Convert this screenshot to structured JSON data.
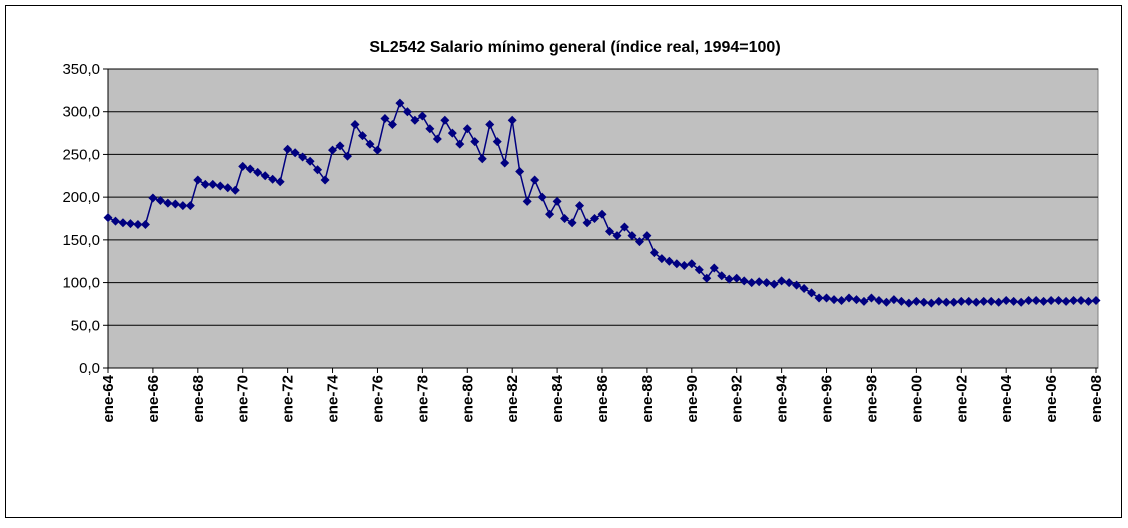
{
  "chart_data": {
    "type": "line",
    "title": "SL2542 Salario mínimo general (índice real, 1994=100)",
    "categories": [
      "ene-64",
      null,
      null,
      null,
      null,
      null,
      "ene-66",
      null,
      null,
      null,
      null,
      null,
      "ene-68",
      null,
      null,
      null,
      null,
      null,
      "ene-70",
      null,
      null,
      null,
      null,
      null,
      "ene-72",
      null,
      null,
      null,
      null,
      null,
      "ene-74",
      null,
      null,
      null,
      null,
      null,
      "ene-76",
      null,
      null,
      null,
      null,
      null,
      "ene-78",
      null,
      null,
      null,
      null,
      null,
      "ene-80",
      null,
      null,
      null,
      null,
      null,
      "ene-82",
      null,
      null,
      null,
      null,
      null,
      "ene-84",
      null,
      null,
      null,
      null,
      null,
      "ene-86",
      null,
      null,
      null,
      null,
      null,
      "ene-88",
      null,
      null,
      null,
      null,
      null,
      "ene-90",
      null,
      null,
      null,
      null,
      null,
      "ene-92",
      null,
      null,
      null,
      null,
      null,
      "ene-94",
      null,
      null,
      null,
      null,
      null,
      "ene-96",
      null,
      null,
      null,
      null,
      null,
      "ene-98",
      null,
      null,
      null,
      null,
      null,
      "ene-00",
      null,
      null,
      null,
      null,
      null,
      "ene-02",
      null,
      null,
      null,
      null,
      null,
      "ene-04",
      null,
      null,
      null,
      null,
      null,
      "ene-06",
      null,
      null,
      null,
      null,
      null,
      "ene-08"
    ],
    "series": [
      {
        "color": "#000080",
        "values": [
          176,
          172,
          170,
          169,
          168,
          168,
          199,
          196,
          193,
          192,
          190,
          190,
          220,
          215,
          215,
          213,
          211,
          208,
          236,
          233,
          229,
          225,
          221,
          218,
          256,
          252,
          247,
          242,
          232,
          220,
          255,
          260,
          248,
          285,
          272,
          262,
          255,
          292,
          285,
          310,
          300,
          290,
          295,
          280,
          268,
          290,
          275,
          262,
          280,
          265,
          245,
          285,
          265,
          240,
          290,
          230,
          195,
          220,
          200,
          180,
          195,
          175,
          170,
          190,
          170,
          175,
          180,
          160,
          155,
          165,
          155,
          148,
          155,
          135,
          128,
          125,
          122,
          120,
          122,
          115,
          105,
          117,
          108,
          104,
          105,
          102,
          100,
          101,
          100,
          98,
          102,
          100,
          97,
          93,
          88,
          82,
          82,
          80,
          79,
          82,
          80,
          78,
          82,
          79,
          77,
          80,
          78,
          76,
          78,
          77,
          76,
          78,
          77,
          77,
          78,
          78,
          77,
          78,
          78,
          77,
          79,
          78,
          77,
          79,
          79,
          78,
          79,
          79,
          78,
          79,
          79,
          78,
          79
        ]
      }
    ],
    "ylim": [
      0,
      350
    ],
    "yticks": [
      {
        "value": 0,
        "label": "0,0"
      },
      {
        "value": 50,
        "label": "50,0"
      },
      {
        "value": 100,
        "label": "100,0"
      },
      {
        "value": 150,
        "label": "150,0"
      },
      {
        "value": 200,
        "label": "200,0"
      },
      {
        "value": 250,
        "label": "250,0"
      },
      {
        "value": 300,
        "label": "300,0"
      },
      {
        "value": 350,
        "label": "350,0"
      }
    ],
    "grid": true,
    "plot_background": "#c0c0c0"
  }
}
